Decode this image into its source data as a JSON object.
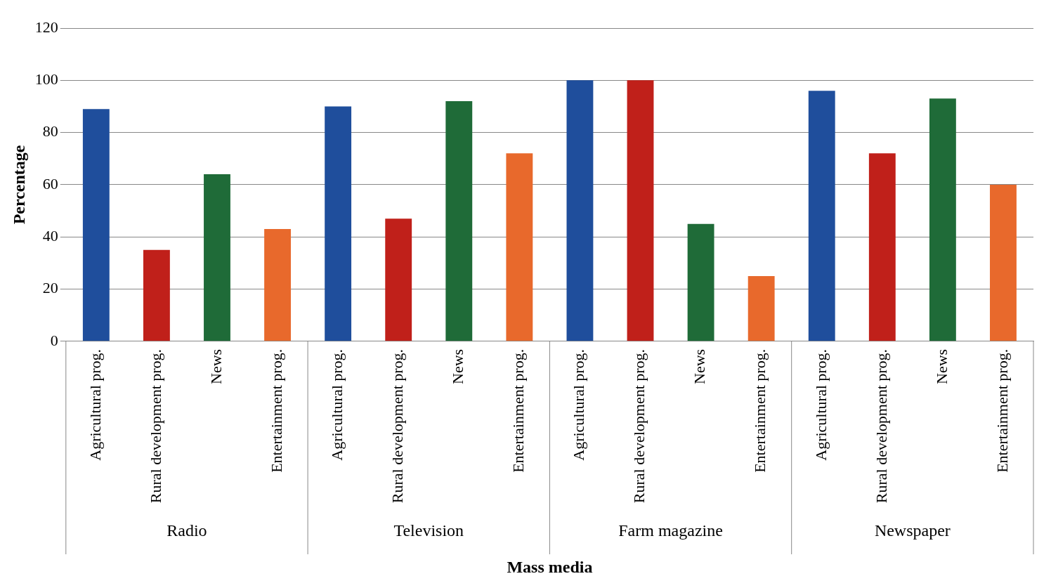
{
  "chart_data": {
    "type": "bar",
    "xlabel": "Mass media",
    "ylabel": "Percentage",
    "categories": [
      "Agricultural prog.",
      "Rural development prog.",
      "News",
      "Entertainment prog.",
      "Agricultural prog.",
      "Rural development prog.",
      "News",
      "Entertainment prog.",
      "Agricultural prog.",
      "Rural development prog.",
      "News",
      "Entertainment prog.",
      "Agricultural prog.",
      "Rural development prog.",
      "News",
      "Entertainment prog."
    ],
    "values": [
      89,
      35,
      64,
      43,
      90,
      47,
      92,
      72,
      100,
      100,
      45,
      25,
      96,
      72,
      93,
      60
    ],
    "colors": [
      "#1f4e9c",
      "#c0201a",
      "#1f6b38",
      "#e8692c",
      "#1f4e9c",
      "#c0201a",
      "#1f6b38",
      "#e8692c",
      "#1f4e9c",
      "#c0201a",
      "#1f6b38",
      "#e8692c",
      "#1f4e9c",
      "#c0201a",
      "#1f6b38",
      "#e8692c"
    ],
    "annotations": [
      "Radio",
      "Television",
      "Farm magazine",
      "Newspaper"
    ],
    "ylim": [
      0,
      120
    ],
    "yticks": [
      0,
      20,
      40,
      60,
      80,
      100,
      120
    ],
    "grid": "y",
    "legend": false
  }
}
